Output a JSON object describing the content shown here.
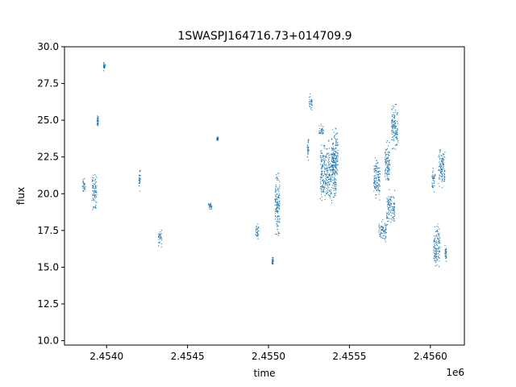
{
  "chart_data": {
    "type": "scatter",
    "title": "1SWASPJ164716.73+014709.9",
    "xlabel": "time",
    "ylabel": "flux",
    "x_offset_label": "1e6",
    "xlim": [
      2.45374,
      2.45621
    ],
    "ylim": [
      9.7,
      30.0
    ],
    "xticks": [
      2.454,
      2.4545,
      2.455,
      2.4555,
      2.456
    ],
    "xtick_labels": [
      "2.4540",
      "2.4545",
      "2.4550",
      "2.4555",
      "2.4560"
    ],
    "yticks": [
      10.0,
      12.5,
      15.0,
      17.5,
      20.0,
      22.5,
      25.0,
      27.5,
      30.0
    ],
    "ytick_labels": [
      "10.0",
      "12.5",
      "15.0",
      "17.5",
      "20.0",
      "22.5",
      "25.0",
      "27.5",
      "30.0"
    ],
    "grid": false,
    "marker_color": "#1f77b4",
    "clusters": [
      {
        "x": [
          2.45385,
          2.45387
        ],
        "y": [
          19.8,
          21.2
        ]
      },
      {
        "x": [
          2.45391,
          2.45394
        ],
        "y": [
          18.5,
          21.8
        ]
      },
      {
        "x": [
          2.45394,
          2.45395
        ],
        "y": [
          24.4,
          25.5
        ]
      },
      {
        "x": [
          2.45398,
          2.45399
        ],
        "y": [
          28.3,
          29.0
        ]
      },
      {
        "x": [
          2.4542,
          2.45421
        ],
        "y": [
          20.0,
          22.2
        ]
      },
      {
        "x": [
          2.45432,
          2.45434
        ],
        "y": [
          16.2,
          17.8
        ]
      },
      {
        "x": [
          2.45463,
          2.45465
        ],
        "y": [
          18.8,
          19.5
        ]
      },
      {
        "x": [
          2.45468,
          2.45469
        ],
        "y": [
          23.6,
          23.9
        ]
      },
      {
        "x": [
          2.45492,
          2.45494
        ],
        "y": [
          16.8,
          18.2
        ]
      },
      {
        "x": [
          2.45502,
          2.45503
        ],
        "y": [
          15.0,
          15.8
        ]
      },
      {
        "x": [
          2.45504,
          2.45507
        ],
        "y": [
          16.5,
          22.0
        ]
      },
      {
        "x": [
          2.45525,
          2.45527
        ],
        "y": [
          25.5,
          27.0
        ]
      },
      {
        "x": [
          2.45524,
          2.45525
        ],
        "y": [
          22.0,
          24.0
        ]
      },
      {
        "x": [
          2.45531,
          2.45534
        ],
        "y": [
          23.8,
          24.8
        ]
      },
      {
        "x": [
          2.45532,
          2.45542
        ],
        "y": [
          18.5,
          24.0
        ]
      },
      {
        "x": [
          2.45539,
          2.45543
        ],
        "y": [
          20.5,
          25.0
        ]
      },
      {
        "x": [
          2.45565,
          2.45569
        ],
        "y": [
          19.0,
          23.0
        ]
      },
      {
        "x": [
          2.45568,
          2.45573
        ],
        "y": [
          16.5,
          18.5
        ]
      },
      {
        "x": [
          2.45572,
          2.45575
        ],
        "y": [
          20.0,
          24.0
        ]
      },
      {
        "x": [
          2.45573,
          2.45578
        ],
        "y": [
          17.5,
          20.5
        ]
      },
      {
        "x": [
          2.45576,
          2.4558
        ],
        "y": [
          22.5,
          26.5
        ]
      },
      {
        "x": [
          2.45601,
          2.45603
        ],
        "y": [
          20.0,
          22.0
        ]
      },
      {
        "x": [
          2.45602,
          2.45606
        ],
        "y": [
          14.5,
          18.5
        ]
      },
      {
        "x": [
          2.45605,
          2.45609
        ],
        "y": [
          20.0,
          23.5
        ]
      },
      {
        "x": [
          2.45609,
          2.4561
        ],
        "y": [
          15.2,
          16.6
        ]
      }
    ]
  }
}
